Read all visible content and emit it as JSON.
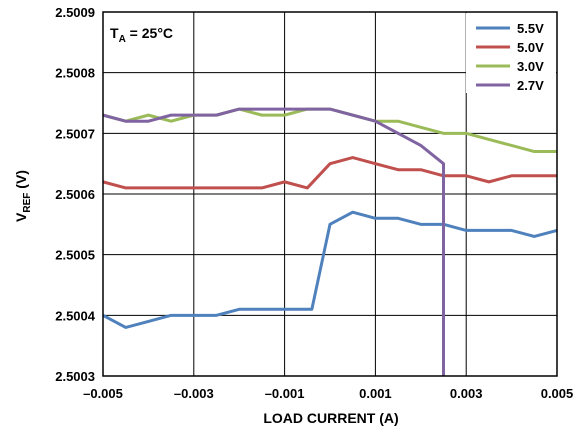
{
  "chart_data": {
    "type": "line",
    "xlabel": "LOAD CURRENT (A)",
    "ylabel_main": "V",
    "ylabel_sub": "REF",
    "ylabel_unit": " (V)",
    "annotation_main": "T",
    "annotation_sub": "A",
    "annotation_rest": " = 25°C",
    "xlim": [
      -0.005,
      0.005
    ],
    "ylim": [
      2.5003,
      2.5009
    ],
    "x_ticks": [
      -0.005,
      -0.003,
      -0.001,
      0.001,
      0.003,
      0.005
    ],
    "x_tick_labels": [
      "–0.005",
      "–0.003",
      "–0.001",
      "0.001",
      "0.003",
      "0.005"
    ],
    "y_ticks": [
      2.5003,
      2.5004,
      2.5005,
      2.5006,
      2.5007,
      2.5008,
      2.5009
    ],
    "y_tick_labels": [
      "2.5003",
      "2.5004",
      "2.5005",
      "2.5006",
      "2.5007",
      "2.5008",
      "2.5009"
    ],
    "grid": true,
    "legend_position": "top-right",
    "series": [
      {
        "name": "5.5V",
        "color": "#4f81bd",
        "x": [
          -0.005,
          -0.0045,
          -0.004,
          -0.0035,
          -0.003,
          -0.0025,
          -0.002,
          -0.0015,
          -0.001,
          -0.0005,
          -0.0004,
          0.0,
          0.0005,
          0.001,
          0.0015,
          0.002,
          0.0025,
          0.003,
          0.0035,
          0.004,
          0.0045,
          0.005
        ],
        "y": [
          2.5004,
          2.50038,
          2.50039,
          2.5004,
          2.5004,
          2.5004,
          2.50041,
          2.50041,
          2.50041,
          2.50041,
          2.50041,
          2.50055,
          2.50057,
          2.50056,
          2.50056,
          2.50055,
          2.50055,
          2.50054,
          2.50054,
          2.50054,
          2.50053,
          2.50054
        ]
      },
      {
        "name": "5.0V",
        "color": "#c0504d",
        "x": [
          -0.005,
          -0.0045,
          -0.004,
          -0.0035,
          -0.003,
          -0.0025,
          -0.002,
          -0.0015,
          -0.001,
          -0.0005,
          0.0,
          0.0005,
          0.001,
          0.0015,
          0.002,
          0.0025,
          0.003,
          0.0035,
          0.004,
          0.0045,
          0.005
        ],
        "y": [
          2.50062,
          2.50061,
          2.50061,
          2.50061,
          2.50061,
          2.50061,
          2.50061,
          2.50061,
          2.50062,
          2.50061,
          2.50065,
          2.50066,
          2.50065,
          2.50064,
          2.50064,
          2.50063,
          2.50063,
          2.50062,
          2.50063,
          2.50063,
          2.50063
        ]
      },
      {
        "name": "3.0V",
        "color": "#9bbb59",
        "x": [
          -0.005,
          -0.0045,
          -0.004,
          -0.0035,
          -0.003,
          -0.0025,
          -0.002,
          -0.0015,
          -0.001,
          -0.0005,
          0.0,
          0.0005,
          0.001,
          0.0015,
          0.002,
          0.0025,
          0.003,
          0.0035,
          0.004,
          0.0045,
          0.005
        ],
        "y": [
          2.50073,
          2.50072,
          2.50073,
          2.50072,
          2.50073,
          2.50073,
          2.50074,
          2.50073,
          2.50073,
          2.50074,
          2.50074,
          2.50073,
          2.50072,
          2.50072,
          2.50071,
          2.5007,
          2.5007,
          2.50069,
          2.50068,
          2.50067,
          2.50067
        ]
      },
      {
        "name": "2.7V",
        "color": "#8064a2",
        "x": [
          -0.005,
          -0.0045,
          -0.004,
          -0.0035,
          -0.003,
          -0.0025,
          -0.002,
          -0.0015,
          -0.001,
          -0.0005,
          0.0,
          0.0005,
          0.001,
          0.0015,
          0.002,
          0.0025,
          0.0025
        ],
        "y": [
          2.50073,
          2.50072,
          2.50072,
          2.50073,
          2.50073,
          2.50073,
          2.50074,
          2.50074,
          2.50074,
          2.50074,
          2.50074,
          2.50073,
          2.50072,
          2.5007,
          2.50068,
          2.50065,
          2.5003
        ]
      }
    ]
  }
}
